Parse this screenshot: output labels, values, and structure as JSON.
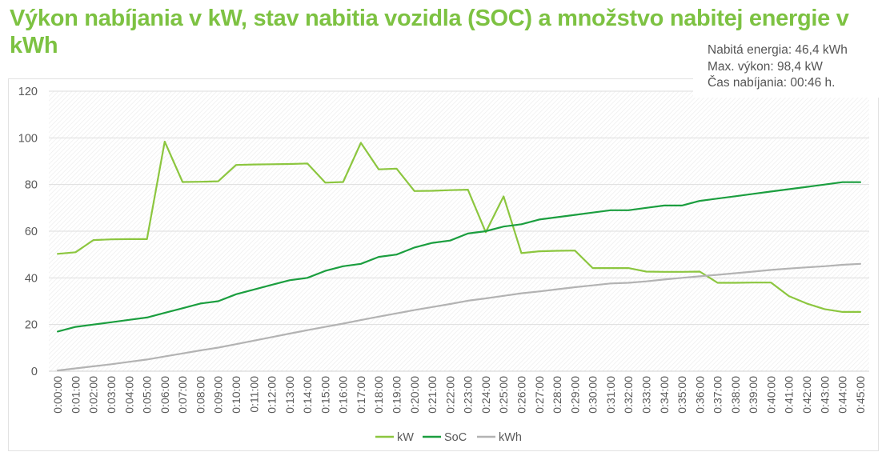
{
  "title": "Výkon nabíjania v kW, stav nabitia vozidla (SOC) a množstvo nabitej energie v kWh",
  "summary": {
    "energy": "Nabitá energia: 46,4 kWh",
    "max_power": "Max. výkon: 98,4 kW",
    "duration": "Čas nabíjania: 00:46 h."
  },
  "chart_data": {
    "type": "line",
    "title": "Výkon nabíjania v kW, stav nabitia vozidla (SOC) a množstvo nabitej energie v kWh",
    "xlabel": "",
    "ylabel": "",
    "ylim": [
      0,
      120
    ],
    "yticks": [
      0,
      20,
      40,
      60,
      80,
      100,
      120
    ],
    "grid": true,
    "legend": "bottom-center",
    "x": [
      "0:00:00",
      "0:01:00",
      "0:02:00",
      "0:03:00",
      "0:04:00",
      "0:05:00",
      "0:06:00",
      "0:07:00",
      "0:08:00",
      "0:09:00",
      "0:10:00",
      "0:11:00",
      "0:12:00",
      "0:13:00",
      "0:14:00",
      "0:15:00",
      "0:16:00",
      "0:17:00",
      "0:18:00",
      "0:19:00",
      "0:20:00",
      "0:21:00",
      "0:22:00",
      "0:23:00",
      "0:24:00",
      "0:25:00",
      "0:26:00",
      "0:27:00",
      "0:28:00",
      "0:29:00",
      "0:30:00",
      "0:31:00",
      "0:32:00",
      "0:33:00",
      "0:34:00",
      "0:35:00",
      "0:36:00",
      "0:37:00",
      "0:38:00",
      "0:39:00",
      "0:40:00",
      "0:41:00",
      "0:42:00",
      "0:43:00",
      "0:44:00",
      "0:45:00"
    ],
    "series": [
      {
        "name": "kW",
        "color": "#8cc63f",
        "values": [
          50.3,
          51,
          56.2,
          56.5,
          56.6,
          56.6,
          98.4,
          81.1,
          81.2,
          81.4,
          88.4,
          88.6,
          88.7,
          88.8,
          89,
          80.8,
          81.1,
          97.9,
          86.5,
          86.8,
          77.2,
          77.3,
          77.6,
          77.8,
          59.6,
          74.9,
          50.6,
          51.4,
          51.6,
          51.7,
          44.2,
          44.2,
          44.2,
          42.7,
          42.6,
          42.6,
          42.7,
          37.9,
          37.9,
          38,
          38,
          32.2,
          29,
          26.6,
          25.4,
          25.4
        ]
      },
      {
        "name": "SoC",
        "color": "#1b9e3f",
        "values": [
          17,
          19,
          20,
          21,
          22,
          23,
          25,
          27,
          29,
          30,
          33,
          35,
          37,
          39,
          40,
          43,
          45,
          46,
          49,
          50,
          53,
          55,
          56,
          59,
          60,
          62,
          63,
          65,
          66,
          67,
          68,
          69,
          69,
          70,
          71,
          71,
          73,
          74,
          75,
          76,
          77,
          78,
          79,
          80,
          81,
          81
        ]
      },
      {
        "name": "kWh",
        "color": "#b3b3b3",
        "values": [
          0.3,
          1.2,
          2.1,
          3.0,
          4.0,
          5.0,
          6.3,
          7.6,
          8.9,
          10.1,
          11.6,
          13.1,
          14.6,
          16.1,
          17.6,
          19.0,
          20.4,
          21.9,
          23.4,
          24.8,
          26.2,
          27.5,
          28.8,
          30.2,
          31.2,
          32.3,
          33.4,
          34.2,
          35.1,
          36.0,
          36.8,
          37.6,
          37.9,
          38.5,
          39.3,
          40.0,
          40.7,
          41.3,
          42.0,
          42.7,
          43.4,
          44.0,
          44.5,
          45.0,
          45.6,
          46.0
        ]
      }
    ]
  }
}
